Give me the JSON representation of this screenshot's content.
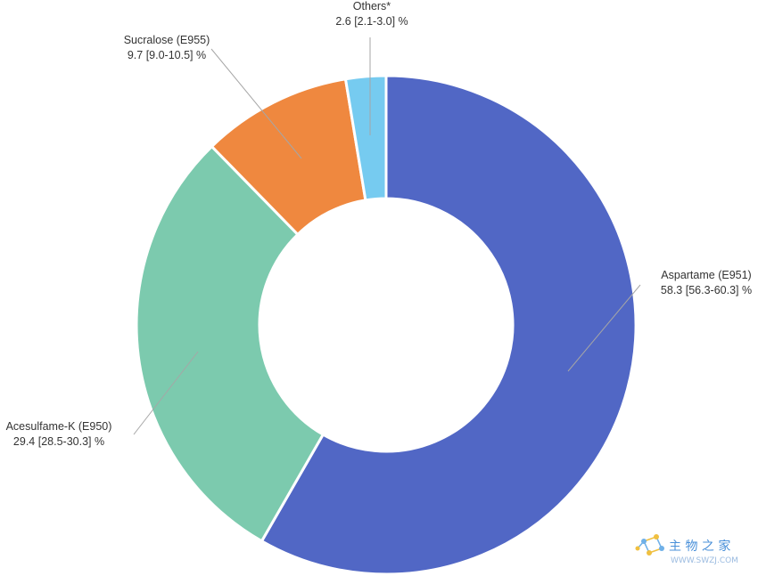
{
  "chart_data": {
    "type": "pie",
    "donut": true,
    "title": "",
    "slices": [
      {
        "name": "Aspartame (E951)",
        "label": "58.3 [56.3-60.3] %",
        "value": 58.3,
        "color": "#5167c5"
      },
      {
        "name": "Acesulfame-K (E950)",
        "label": "29.4 [28.5-30.3] %",
        "value": 29.4,
        "color": "#7ccaae"
      },
      {
        "name": "Sucralose (E955)",
        "label": "9.7 [9.0-10.5] %",
        "value": 9.7,
        "color": "#ef883f"
      },
      {
        "name": "Others*",
        "label": "2.6 [2.1-3.0] %",
        "value": 2.6,
        "color": "#76cbf0"
      }
    ],
    "start_angle": "12 o'clock",
    "direction": "clockwise",
    "legend": "none"
  },
  "watermark": {
    "text": "主 物 之 家",
    "url": "WWW.SWZJ.COM",
    "icon": "molecule-icon",
    "color": "#4a90d9"
  }
}
